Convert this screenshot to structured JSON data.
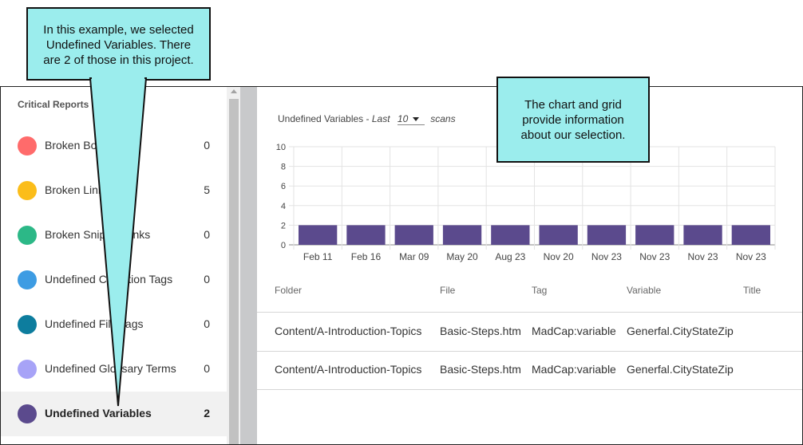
{
  "left_panel": {
    "title": "Critical Reports",
    "items": [
      {
        "label": "Broken Bookmarks",
        "count": "0",
        "color": "#ff6b6b",
        "selected": false
      },
      {
        "label": "Broken Links",
        "count": "5",
        "color": "#fbbd1a",
        "selected": false
      },
      {
        "label": "Broken Snippet Links",
        "count": "0",
        "color": "#2cb887",
        "selected": false
      },
      {
        "label": "Undefined Condition Tags",
        "count": "0",
        "color": "#3d9ce3",
        "selected": false
      },
      {
        "label": "Undefined File Tags",
        "count": "0",
        "color": "#0d7d9e",
        "selected": false
      },
      {
        "label": "Undefined Glossary Terms",
        "count": "0",
        "color": "#a7a3f7",
        "selected": false
      },
      {
        "label": "Undefined Variables",
        "count": "2",
        "color": "#5b4a8d",
        "selected": true
      }
    ]
  },
  "chart_header": {
    "report_name": "Undefined Variables",
    "separator": " - ",
    "last_label": "Last",
    "scans_value": "10",
    "scans_label": "scans"
  },
  "chart_data": {
    "type": "bar",
    "categories": [
      "Feb 11",
      "Feb 16",
      "Mar 09",
      "May 20",
      "Aug 23",
      "Nov 20",
      "Nov 23",
      "Nov 23",
      "Nov 23",
      "Nov 23"
    ],
    "values": [
      2,
      2,
      2,
      2,
      2,
      2,
      2,
      2,
      2,
      2
    ],
    "ylim": [
      0,
      10
    ],
    "yticks": [
      0,
      2,
      4,
      6,
      8,
      10
    ],
    "grid": true,
    "bar_color": "#5b4a8d",
    "xlabel": "",
    "ylabel": ""
  },
  "grid": {
    "headers": [
      "Folder",
      "File",
      "Tag",
      "Variable",
      "Title"
    ],
    "rows": [
      [
        "Content/A-Introduction-Topics",
        "Basic-Steps.htm",
        "MadCap:variable",
        "Generfal.CityStateZip",
        ""
      ],
      [
        "Content/A-Introduction-Topics",
        "Basic-Steps.htm",
        "MadCap:variable",
        "Generfal.CityStateZip",
        ""
      ]
    ]
  },
  "callouts": {
    "left": [
      "In this example, we selected",
      "Undefined Variables. There",
      "are 2 of those in this project."
    ],
    "right": [
      "The chart and grid",
      "provide information",
      "about our selection."
    ]
  },
  "colors": {
    "callout_fill": "#9beded",
    "accent": "#5b4a8d"
  }
}
